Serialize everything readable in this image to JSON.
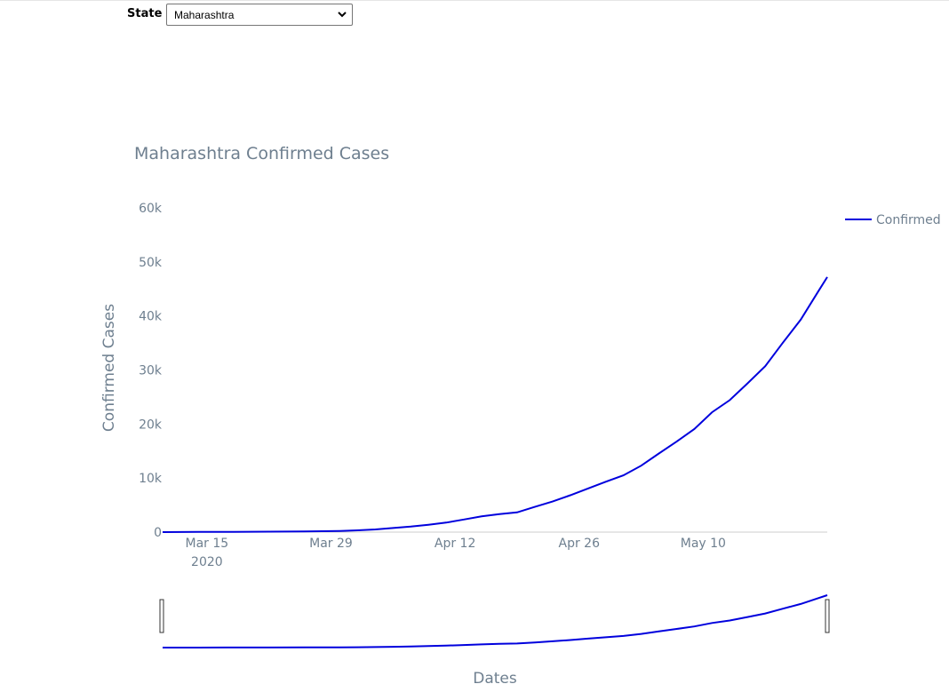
{
  "controls": {
    "state_label": "State",
    "state_selected": "Maharashtra"
  },
  "colors": {
    "line": "#0000dd",
    "text": "#6e7f8f"
  },
  "chart_data": {
    "type": "line",
    "title": "Maharashtra Confirmed Cases",
    "xlabel": "Dates",
    "ylabel": "Confirmed Cases",
    "x_tick_labels": [
      "Mar 15",
      "Mar 29",
      "Apr 12",
      "Apr 26",
      "May 10"
    ],
    "x_year_label": "2020",
    "y_tick_labels": [
      "0",
      "10k",
      "20k",
      "30k",
      "40k",
      "50k",
      "60k"
    ],
    "ylim": [
      0,
      60000
    ],
    "xlim": [
      "2020-03-10",
      "2020-05-24"
    ],
    "legend": "top-right",
    "rangeslider": true,
    "series": [
      {
        "name": "Confirmed",
        "color": "#0000dd",
        "points": [
          [
            "2020-03-10",
            2
          ],
          [
            "2020-03-14",
            26
          ],
          [
            "2020-03-18",
            45
          ],
          [
            "2020-03-22",
            74
          ],
          [
            "2020-03-26",
            130
          ],
          [
            "2020-03-30",
            220
          ],
          [
            "2020-04-01",
            335
          ],
          [
            "2020-04-03",
            490
          ],
          [
            "2020-04-05",
            748
          ],
          [
            "2020-04-07",
            1018
          ],
          [
            "2020-04-09",
            1364
          ],
          [
            "2020-04-11",
            1761
          ],
          [
            "2020-04-13",
            2334
          ],
          [
            "2020-04-15",
            2916
          ],
          [
            "2020-04-17",
            3323
          ],
          [
            "2020-04-19",
            3648
          ],
          [
            "2020-04-21",
            4669
          ],
          [
            "2020-04-23",
            5652
          ],
          [
            "2020-04-25",
            6817
          ],
          [
            "2020-04-27",
            8068
          ],
          [
            "2020-04-29",
            9318
          ],
          [
            "2020-05-01",
            10498
          ],
          [
            "2020-05-03",
            12296
          ],
          [
            "2020-05-05",
            14541
          ],
          [
            "2020-05-07",
            16758
          ],
          [
            "2020-05-09",
            19063
          ],
          [
            "2020-05-11",
            22171
          ],
          [
            "2020-05-13",
            24427
          ],
          [
            "2020-05-15",
            27524
          ],
          [
            "2020-05-17",
            30706
          ],
          [
            "2020-05-19",
            35058
          ],
          [
            "2020-05-21",
            39297
          ],
          [
            "2020-05-23",
            44582
          ],
          [
            "2020-05-24",
            47190
          ]
        ]
      }
    ]
  }
}
